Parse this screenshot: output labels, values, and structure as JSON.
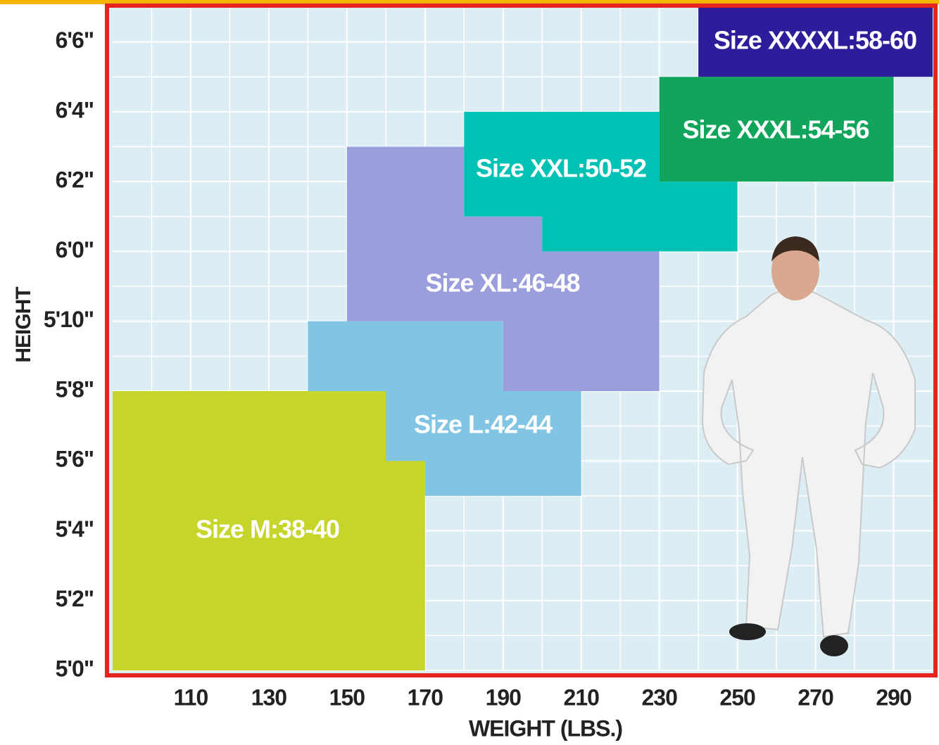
{
  "chart_data": {
    "type": "region",
    "x_label": "WEIGHT (LBS.)",
    "y_label": "HEIGHT",
    "xlim": [
      90,
      300
    ],
    "xticks": [
      110,
      130,
      150,
      170,
      190,
      210,
      230,
      250,
      270,
      290
    ],
    "ylim": [
      60,
      79
    ],
    "yticks": [
      {
        "value": 60,
        "label": "5'0\""
      },
      {
        "value": 62,
        "label": "5'2\""
      },
      {
        "value": 64,
        "label": "5'4\""
      },
      {
        "value": 66,
        "label": "5'6\""
      },
      {
        "value": 68,
        "label": "5'8\""
      },
      {
        "value": 70,
        "label": "5'10\""
      },
      {
        "value": 72,
        "label": "6'0\""
      },
      {
        "value": 74,
        "label": "6'2\""
      },
      {
        "value": 76,
        "label": "6'4\""
      },
      {
        "value": 78,
        "label": "6'6\""
      }
    ],
    "grid": true,
    "series": [
      {
        "name": "Size M:38-40",
        "color": "#c5d52a",
        "points": [
          [
            90,
            60
          ],
          [
            170,
            60
          ],
          [
            170,
            68
          ],
          [
            90,
            68
          ]
        ]
      },
      {
        "name": "Size L:42-44",
        "color": "#82c4e4",
        "points": [
          [
            140,
            70
          ],
          [
            190,
            70
          ],
          [
            190,
            68
          ],
          [
            210,
            68
          ],
          [
            210,
            65
          ],
          [
            170,
            65
          ],
          [
            170,
            66
          ],
          [
            160,
            66
          ],
          [
            160,
            68
          ],
          [
            140,
            68
          ]
        ]
      },
      {
        "name": "Size XL:46-48",
        "color": "#9b9edd",
        "points": [
          [
            150,
            75
          ],
          [
            180,
            75
          ],
          [
            180,
            73
          ],
          [
            200,
            73
          ],
          [
            200,
            72
          ],
          [
            230,
            72
          ],
          [
            230,
            68
          ],
          [
            190,
            68
          ],
          [
            190,
            70
          ],
          [
            150,
            70
          ]
        ]
      },
      {
        "name": "Size XXL:50-52",
        "color": "#00c2b4",
        "points": [
          [
            180,
            76
          ],
          [
            230,
            76
          ],
          [
            230,
            74
          ],
          [
            250,
            74
          ],
          [
            250,
            72
          ],
          [
            200,
            72
          ],
          [
            200,
            73
          ],
          [
            180,
            73
          ]
        ]
      },
      {
        "name": "Size XXXL:54-56",
        "color": "#10a55a",
        "points": [
          [
            230,
            77
          ],
          [
            290,
            77
          ],
          [
            290,
            74
          ],
          [
            230,
            74
          ]
        ]
      },
      {
        "name": "Size XXXXL:58-60",
        "color": "#2e1d9a",
        "points": [
          [
            240,
            79
          ],
          [
            300,
            79
          ],
          [
            300,
            77
          ],
          [
            240,
            77
          ]
        ]
      }
    ]
  }
}
